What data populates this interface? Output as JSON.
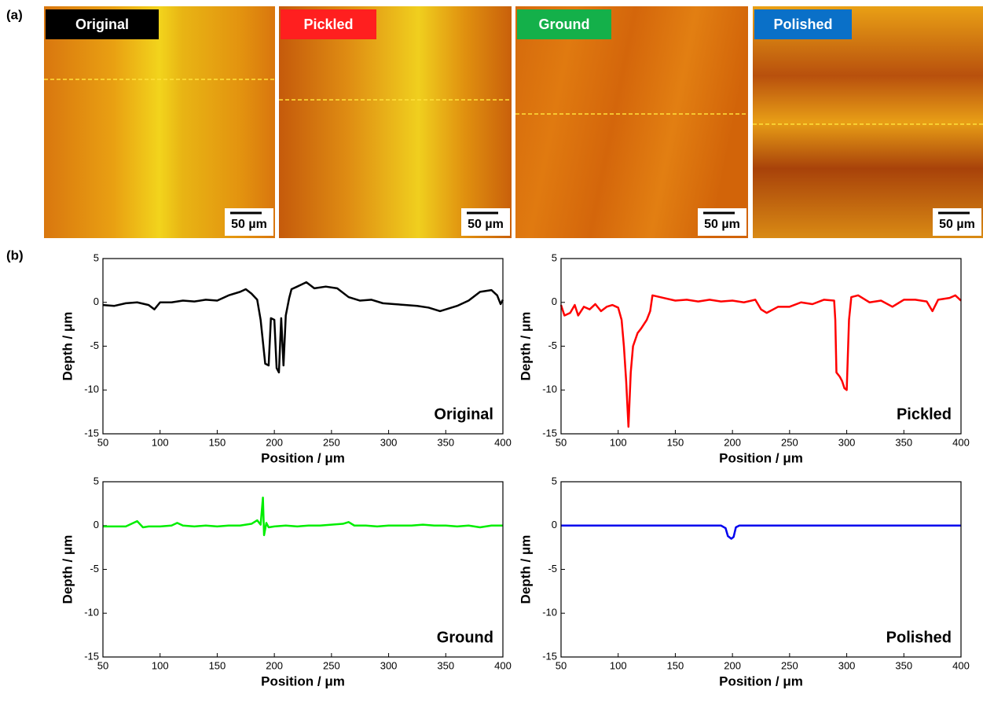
{
  "panel_labels": [
    "(a)",
    "(b)"
  ],
  "images": [
    {
      "label": "Original",
      "label_color": "#000000",
      "scale_bar": "50 µm"
    },
    {
      "label": "Pickled",
      "label_color": "#ff1f1f",
      "scale_bar": "50 µm"
    },
    {
      "label": "Ground",
      "label_color": "#14b04a",
      "scale_bar": "50 µm"
    },
    {
      "label": "Polished",
      "label_color": "#0a70c8",
      "scale_bar": "50 µm"
    }
  ],
  "chart_data": [
    {
      "type": "line",
      "annotation": "Original",
      "x_label": "Position / μm",
      "y_label": "Depth / μm",
      "color": "#000000",
      "xlim": [
        50,
        400
      ],
      "ylim": [
        -15,
        5
      ],
      "xticks": [
        50,
        100,
        150,
        200,
        250,
        300,
        350,
        400
      ],
      "yticks": [
        -15,
        -10,
        -5,
        0,
        5
      ],
      "x": [
        50,
        60,
        70,
        80,
        90,
        95,
        100,
        110,
        120,
        130,
        140,
        150,
        160,
        170,
        175,
        180,
        185,
        188,
        192,
        195,
        197,
        200,
        202,
        204,
        206,
        208,
        210,
        213,
        215,
        220,
        228,
        235,
        245,
        255,
        265,
        275,
        285,
        295,
        305,
        315,
        325,
        335,
        345,
        350,
        360,
        370,
        380,
        390,
        395,
        398,
        400
      ],
      "values": [
        -0.3,
        -0.4,
        -0.1,
        0,
        -0.3,
        -0.8,
        0,
        0,
        0.2,
        0.1,
        0.3,
        0.2,
        0.8,
        1.2,
        1.5,
        1.0,
        0.3,
        -2,
        -7,
        -7.2,
        -1.8,
        -2,
        -7.5,
        -8,
        -1.8,
        -7.2,
        -1.5,
        0.5,
        1.5,
        1.8,
        2.3,
        1.6,
        1.8,
        1.6,
        0.6,
        0.2,
        0.3,
        -0.1,
        -0.2,
        -0.3,
        -0.4,
        -0.6,
        -1,
        -0.8,
        -0.4,
        0.2,
        1.2,
        1.4,
        0.8,
        -0.2,
        0.3
      ]
    },
    {
      "type": "line",
      "annotation": "Pickled",
      "x_label": "Position / μm",
      "y_label": "Depth / μm",
      "color": "#ff0000",
      "xlim": [
        50,
        400
      ],
      "ylim": [
        -15,
        5
      ],
      "xticks": [
        50,
        100,
        150,
        200,
        250,
        300,
        350,
        400
      ],
      "yticks": [
        -15,
        -10,
        -5,
        0,
        5
      ],
      "x": [
        50,
        53,
        58,
        62,
        65,
        70,
        75,
        80,
        85,
        90,
        95,
        100,
        103,
        105,
        107,
        109,
        111,
        113,
        117,
        120,
        125,
        128,
        130,
        140,
        150,
        160,
        170,
        180,
        190,
        200,
        210,
        220,
        225,
        230,
        240,
        250,
        260,
        270,
        280,
        289,
        290,
        291,
        294,
        296,
        298,
        300,
        302,
        304,
        310,
        320,
        330,
        340,
        350,
        360,
        370,
        375,
        380,
        390,
        395,
        400
      ],
      "values": [
        -0.3,
        -1.5,
        -1.2,
        -0.3,
        -1.5,
        -0.5,
        -0.8,
        -0.2,
        -1,
        -0.5,
        -0.3,
        -0.6,
        -2,
        -5,
        -9,
        -14.2,
        -8,
        -5,
        -3.5,
        -3,
        -2,
        -1,
        0.8,
        0.5,
        0.2,
        0.3,
        0.1,
        0.3,
        0.1,
        0.2,
        0,
        0.3,
        -0.8,
        -1.2,
        -0.5,
        -0.5,
        0,
        -0.2,
        0.3,
        0.2,
        -2,
        -8,
        -8.5,
        -9,
        -9.8,
        -10,
        -2,
        0.6,
        0.8,
        0,
        0.2,
        -0.5,
        0.3,
        0.3,
        0.1,
        -1,
        0.3,
        0.5,
        0.8,
        0.2
      ]
    },
    {
      "type": "line",
      "annotation": "Ground",
      "x_label": "Position / μm",
      "y_label": "Depth / μm",
      "color": "#00ee00",
      "xlim": [
        50,
        400
      ],
      "ylim": [
        -15,
        5
      ],
      "xticks": [
        50,
        100,
        150,
        200,
        250,
        300,
        350,
        400
      ],
      "yticks": [
        -15,
        -10,
        -5,
        0,
        5
      ],
      "x": [
        50,
        60,
        70,
        80,
        85,
        90,
        100,
        110,
        115,
        120,
        130,
        140,
        150,
        160,
        170,
        180,
        185,
        188,
        190,
        191,
        193,
        195,
        200,
        210,
        220,
        230,
        240,
        250,
        260,
        265,
        270,
        280,
        290,
        300,
        310,
        320,
        330,
        340,
        350,
        360,
        370,
        380,
        390,
        400
      ],
      "values": [
        -0.1,
        -0.1,
        -0.1,
        0.5,
        -0.2,
        -0.1,
        -0.1,
        0,
        0.3,
        0,
        -0.1,
        0,
        -0.1,
        0,
        0,
        0.2,
        0.6,
        0.1,
        3.2,
        -1.1,
        0.3,
        -0.2,
        -0.1,
        0,
        -0.1,
        0,
        0,
        0.1,
        0.2,
        0.4,
        0,
        0,
        -0.1,
        0,
        0,
        0,
        0.1,
        0,
        0,
        -0.1,
        0,
        -0.2,
        0,
        0
      ]
    },
    {
      "type": "line",
      "annotation": "Polished",
      "x_label": "Position / μm",
      "y_label": "Depth / μm",
      "color": "#0000ee",
      "xlim": [
        50,
        400
      ],
      "ylim": [
        -15,
        5
      ],
      "xticks": [
        50,
        100,
        150,
        200,
        250,
        300,
        350,
        400
      ],
      "yticks": [
        -15,
        -10,
        -5,
        0,
        5
      ],
      "x": [
        50,
        100,
        150,
        190,
        194,
        196,
        199,
        201,
        203,
        206,
        250,
        300,
        350,
        400
      ],
      "values": [
        0,
        0,
        0,
        0,
        -0.3,
        -1.2,
        -1.5,
        -1.3,
        -0.2,
        0,
        0,
        0,
        0,
        0
      ]
    }
  ]
}
